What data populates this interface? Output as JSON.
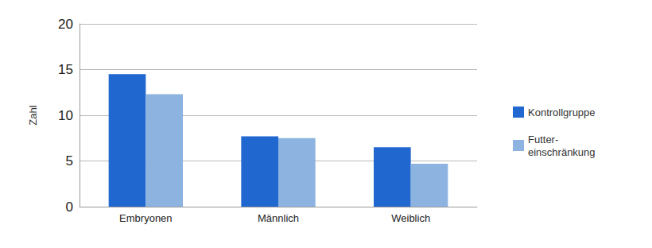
{
  "chart_data": {
    "type": "bar",
    "y_label": "Zahl",
    "categories": [
      "Embryonen",
      "Männlich",
      "Weiblich"
    ],
    "series": [
      {
        "name": "Kontrollgruppe",
        "color": "#2067cf",
        "values": [
          14.5,
          7.7,
          6.5
        ]
      },
      {
        "name": "Futter-\neinschränkung",
        "color": "#8db3e0",
        "values": [
          12.3,
          7.5,
          4.7
        ]
      }
    ],
    "ylim": [
      0,
      20
    ],
    "yticks": [
      0,
      5,
      10,
      15,
      20
    ],
    "grid": true,
    "legend": "right"
  }
}
